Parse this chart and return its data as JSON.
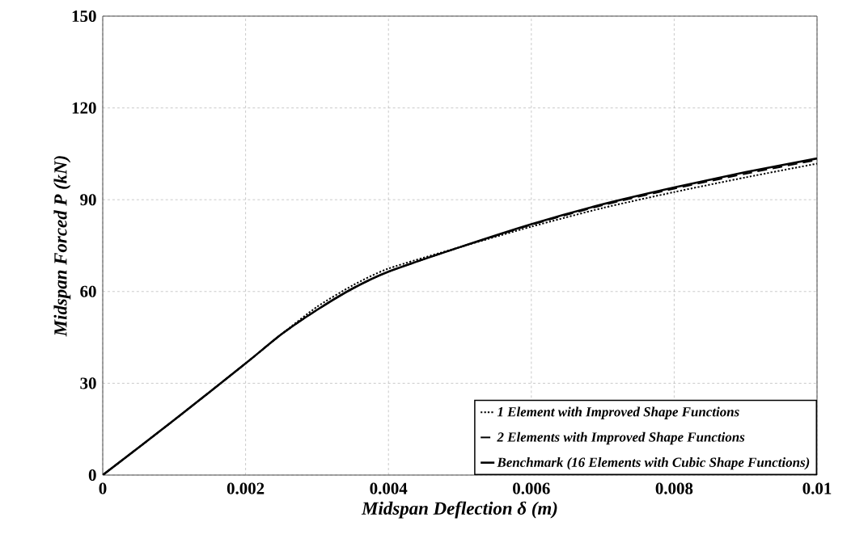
{
  "chart_data": {
    "type": "line",
    "xlabel": "Midspan Deflection δ (m)",
    "ylabel": "Midspan Forced P (kN)",
    "xlim": [
      0,
      0.01
    ],
    "ylim": [
      0,
      150
    ],
    "xticks": [
      0,
      0.002,
      0.004,
      0.006,
      0.008,
      0.01
    ],
    "yticks": [
      0,
      30,
      60,
      90,
      120,
      150
    ],
    "grid": true,
    "legend": "bottom right",
    "marker": "none",
    "series": [
      {
        "name": "1 Element with Improved Shape Functions",
        "color": "#000000",
        "line_style": "dotted",
        "x": [
          0,
          0.001,
          0.002,
          0.0025,
          0.003,
          0.0035,
          0.004,
          0.005,
          0.006,
          0.007,
          0.008,
          0.009,
          0.01
        ],
        "values": [
          0,
          18,
          36.5,
          46,
          55,
          62,
          67.5,
          74.5,
          81.2,
          87.3,
          92.5,
          97.3,
          101.8
        ]
      },
      {
        "name": "2 Elements with Improved Shape Functions",
        "color": "#000000",
        "line_style": "dashed",
        "x": [
          0,
          0.001,
          0.002,
          0.0025,
          0.003,
          0.0035,
          0.004,
          0.005,
          0.006,
          0.007,
          0.008,
          0.009,
          0.01
        ],
        "values": [
          0,
          18,
          36.5,
          46,
          54,
          61,
          66.5,
          74.5,
          81.8,
          88.2,
          93.6,
          98.5,
          103
        ]
      },
      {
        "name": "Benchmark (16 Elements with Cubic Shape Functions)",
        "color": "#000000",
        "line_style": "solid",
        "x": [
          0,
          0.001,
          0.002,
          0.0025,
          0.003,
          0.0035,
          0.004,
          0.005,
          0.006,
          0.007,
          0.008,
          0.009,
          0.01
        ],
        "values": [
          0,
          18,
          36.5,
          46,
          54,
          61,
          66.5,
          74.5,
          82,
          88.5,
          94,
          99,
          103.5
        ]
      }
    ]
  }
}
